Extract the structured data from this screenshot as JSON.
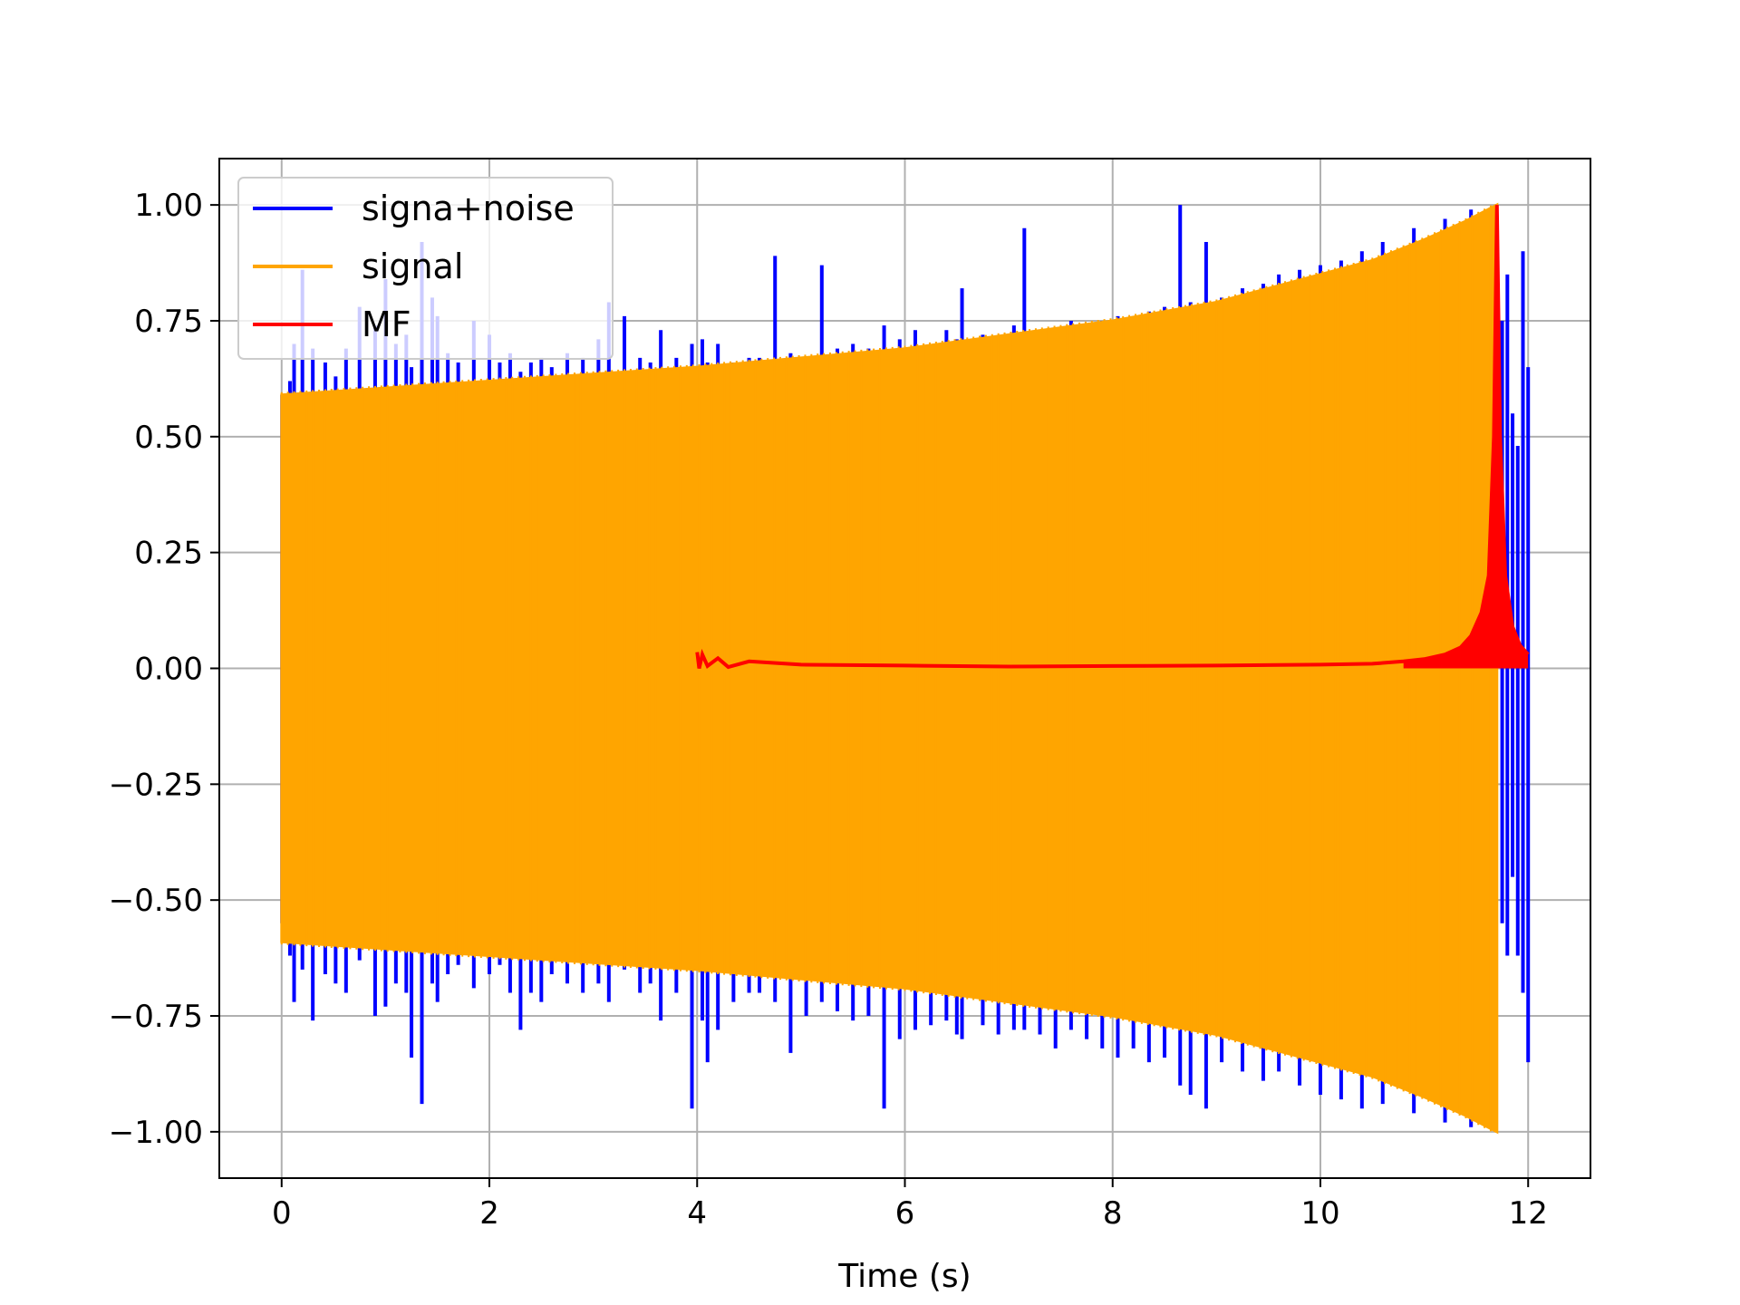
{
  "chart_data": {
    "type": "line",
    "title": "",
    "xlabel": "Time (s)",
    "ylabel": "",
    "xlim": [
      -0.6,
      12.6
    ],
    "ylim": [
      -1.1,
      1.1
    ],
    "grid": true,
    "legend_position": "top-left",
    "x_ticks": [
      0,
      2,
      4,
      6,
      8,
      10,
      12
    ],
    "x_tick_labels": [
      "0",
      "2",
      "4",
      "6",
      "8",
      "10",
      "12"
    ],
    "y_ticks": [
      1.0,
      0.75,
      0.5,
      0.25,
      0.0,
      -0.25,
      -0.5,
      -0.75,
      -1.0
    ],
    "y_tick_labels": [
      "1.00",
      "0.75",
      "0.50",
      "0.25",
      "0.00",
      "−0.25",
      "−0.50",
      "−0.75",
      "−1.00"
    ],
    "series": [
      {
        "name": "signa+noise",
        "color": "#0000ff",
        "spikes": [
          [
            0.08,
            0.62,
            -0.62
          ],
          [
            0.12,
            0.7,
            -0.72
          ],
          [
            0.2,
            0.86,
            -0.65
          ],
          [
            0.3,
            0.69,
            -0.76
          ],
          [
            0.42,
            0.66,
            -0.66
          ],
          [
            0.52,
            0.63,
            -0.68
          ],
          [
            0.62,
            0.69,
            -0.7
          ],
          [
            0.75,
            0.78,
            -0.63
          ],
          [
            0.9,
            0.74,
            -0.75
          ],
          [
            1.0,
            0.84,
            -0.73
          ],
          [
            1.1,
            0.7,
            -0.68
          ],
          [
            1.2,
            0.72,
            -0.7
          ],
          [
            1.25,
            0.65,
            -0.84
          ],
          [
            1.35,
            0.92,
            -0.94
          ],
          [
            1.45,
            0.8,
            -0.68
          ],
          [
            1.5,
            0.76,
            -0.72
          ],
          [
            1.6,
            0.68,
            -0.66
          ],
          [
            1.7,
            0.66,
            -0.64
          ],
          [
            1.85,
            0.75,
            -0.69
          ],
          [
            2.0,
            0.72,
            -0.66
          ],
          [
            2.1,
            0.66,
            -0.64
          ],
          [
            2.2,
            0.68,
            -0.7
          ],
          [
            2.3,
            0.64,
            -0.78
          ],
          [
            2.4,
            0.66,
            -0.7
          ],
          [
            2.5,
            0.67,
            -0.72
          ],
          [
            2.6,
            0.65,
            -0.66
          ],
          [
            2.75,
            0.68,
            -0.68
          ],
          [
            2.9,
            0.67,
            -0.7
          ],
          [
            3.05,
            0.71,
            -0.68
          ],
          [
            3.15,
            0.79,
            -0.72
          ],
          [
            3.3,
            0.76,
            -0.65
          ],
          [
            3.45,
            0.67,
            -0.7
          ],
          [
            3.55,
            0.66,
            -0.68
          ],
          [
            3.65,
            0.73,
            -0.76
          ],
          [
            3.8,
            0.67,
            -0.7
          ],
          [
            3.95,
            0.7,
            -0.95
          ],
          [
            4.05,
            0.71,
            -0.76
          ],
          [
            4.1,
            0.66,
            -0.85
          ],
          [
            4.2,
            0.7,
            -0.78
          ],
          [
            4.35,
            0.66,
            -0.72
          ],
          [
            4.5,
            0.67,
            -0.7
          ],
          [
            4.6,
            0.67,
            -0.7
          ],
          [
            4.75,
            0.89,
            -0.72
          ],
          [
            4.9,
            0.68,
            -0.83
          ],
          [
            5.05,
            0.67,
            -0.75
          ],
          [
            5.2,
            0.87,
            -0.72
          ],
          [
            5.35,
            0.69,
            -0.74
          ],
          [
            5.5,
            0.7,
            -0.76
          ],
          [
            5.65,
            0.69,
            -0.75
          ],
          [
            5.8,
            0.74,
            -0.95
          ],
          [
            5.95,
            0.71,
            -0.8
          ],
          [
            6.1,
            0.73,
            -0.78
          ],
          [
            6.25,
            0.7,
            -0.77
          ],
          [
            6.4,
            0.73,
            -0.76
          ],
          [
            6.5,
            0.71,
            -0.79
          ],
          [
            6.55,
            0.82,
            -0.8
          ],
          [
            6.75,
            0.72,
            -0.77
          ],
          [
            6.9,
            0.71,
            -0.79
          ],
          [
            7.05,
            0.74,
            -0.78
          ],
          [
            7.15,
            0.95,
            -0.78
          ],
          [
            7.3,
            0.72,
            -0.79
          ],
          [
            7.45,
            0.73,
            -0.82
          ],
          [
            7.6,
            0.75,
            -0.78
          ],
          [
            7.75,
            0.74,
            -0.8
          ],
          [
            7.9,
            0.75,
            -0.82
          ],
          [
            8.05,
            0.76,
            -0.84
          ],
          [
            8.2,
            0.76,
            -0.82
          ],
          [
            8.35,
            0.77,
            -0.85
          ],
          [
            8.5,
            0.78,
            -0.84
          ],
          [
            8.65,
            1.0,
            -0.9
          ],
          [
            8.75,
            0.79,
            -0.92
          ],
          [
            8.9,
            0.92,
            -0.95
          ],
          [
            9.05,
            0.8,
            -0.85
          ],
          [
            9.25,
            0.82,
            -0.87
          ],
          [
            9.45,
            0.83,
            -0.89
          ],
          [
            9.6,
            0.85,
            -0.87
          ],
          [
            9.8,
            0.86,
            -0.9
          ],
          [
            10.0,
            0.87,
            -0.92
          ],
          [
            10.2,
            0.88,
            -0.93
          ],
          [
            10.4,
            0.9,
            -0.95
          ],
          [
            10.6,
            0.92,
            -0.94
          ],
          [
            10.9,
            0.95,
            -0.96
          ],
          [
            11.2,
            0.97,
            -0.98
          ],
          [
            11.45,
            0.99,
            -0.99
          ],
          [
            11.75,
            0.75,
            -0.55
          ],
          [
            11.8,
            0.85,
            -0.62
          ],
          [
            11.85,
            0.55,
            -0.45
          ],
          [
            11.9,
            0.48,
            -0.62
          ],
          [
            11.95,
            0.9,
            -0.7
          ],
          [
            12.0,
            0.65,
            -0.85
          ]
        ]
      },
      {
        "name": "signal",
        "color": "#ffa500",
        "start": 0.0,
        "end": 11.7,
        "envelope": [
          [
            0.0,
            0.59
          ],
          [
            1.0,
            0.605
          ],
          [
            2.0,
            0.62
          ],
          [
            3.0,
            0.635
          ],
          [
            4.0,
            0.65
          ],
          [
            5.0,
            0.67
          ],
          [
            6.0,
            0.69
          ],
          [
            7.0,
            0.72
          ],
          [
            8.0,
            0.75
          ],
          [
            9.0,
            0.79
          ],
          [
            10.0,
            0.85
          ],
          [
            10.5,
            0.88
          ],
          [
            11.0,
            0.925
          ],
          [
            11.4,
            0.965
          ],
          [
            11.7,
            1.0
          ]
        ]
      },
      {
        "name": "MF",
        "color": "#ff0000",
        "points": [
          [
            4.0,
            0.035
          ],
          [
            4.02,
            0.0
          ],
          [
            4.05,
            0.03
          ],
          [
            4.1,
            0.005
          ],
          [
            4.2,
            0.022
          ],
          [
            4.3,
            0.003
          ],
          [
            4.5,
            0.015
          ],
          [
            5.0,
            0.008
          ],
          [
            6.0,
            0.006
          ],
          [
            7.0,
            0.004
          ],
          [
            8.0,
            0.005
          ],
          [
            9.0,
            0.006
          ],
          [
            10.0,
            0.008
          ],
          [
            10.5,
            0.01
          ],
          [
            10.8,
            0.015
          ],
          [
            11.0,
            0.02
          ],
          [
            11.2,
            0.03
          ],
          [
            11.35,
            0.045
          ],
          [
            11.45,
            0.07
          ],
          [
            11.55,
            0.12
          ],
          [
            11.62,
            0.2
          ],
          [
            11.67,
            0.5
          ],
          [
            11.7,
            1.0
          ],
          [
            11.73,
            0.5
          ],
          [
            11.78,
            0.2
          ],
          [
            11.85,
            0.09
          ],
          [
            11.92,
            0.05
          ],
          [
            12.0,
            0.03
          ]
        ]
      }
    ]
  }
}
